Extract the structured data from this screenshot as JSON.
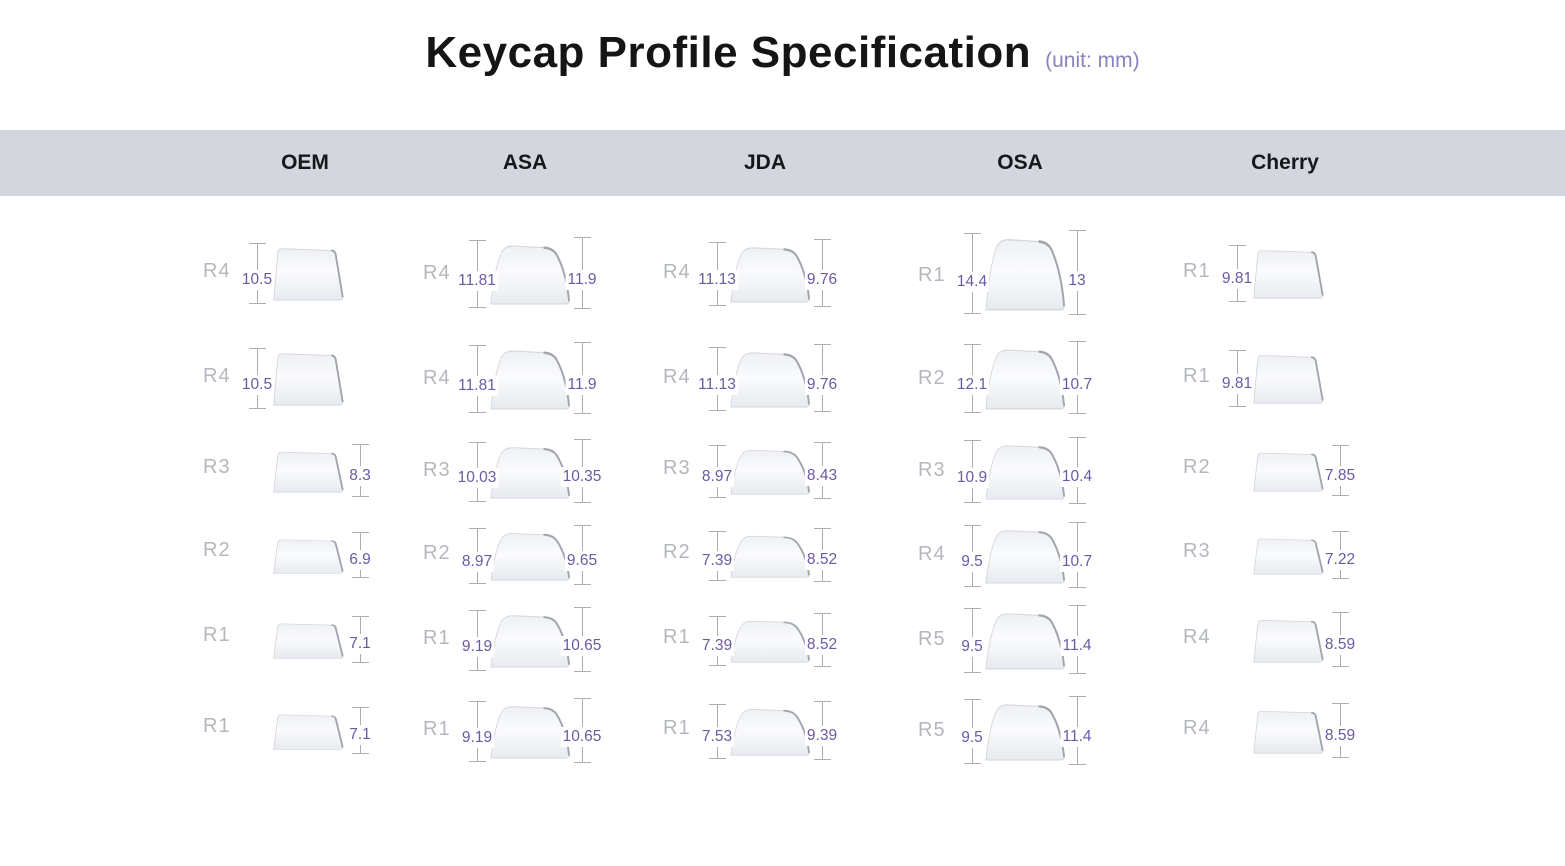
{
  "title": "Keycap Profile Specification",
  "unit_note": "(unit: mm)",
  "colors": {
    "header_band": "#d3d6dd",
    "row_label": "#b4b7bd",
    "dimension_value": "#6c59a5",
    "dimension_line": "#a9adb4",
    "unit_note": "#8784bd",
    "title": "#151515"
  },
  "columns": [
    {
      "name": "OEM",
      "shape": "flat",
      "rows": [
        {
          "label": "R4",
          "left": "10.5",
          "right": null
        },
        {
          "label": "R4",
          "left": "10.5",
          "right": null
        },
        {
          "label": "R3",
          "left": null,
          "right": "8.3"
        },
        {
          "label": "R2",
          "left": null,
          "right": "6.9"
        },
        {
          "label": "R1",
          "left": null,
          "right": "7.1"
        },
        {
          "label": "R1",
          "left": null,
          "right": "7.1"
        }
      ]
    },
    {
      "name": "ASA",
      "shape": "round",
      "rows": [
        {
          "label": "R4",
          "left": "11.81",
          "right": "11.9"
        },
        {
          "label": "R4",
          "left": "11.81",
          "right": "11.9"
        },
        {
          "label": "R3",
          "left": "10.03",
          "right": "10.35"
        },
        {
          "label": "R2",
          "left": "8.97",
          "right": "9.65"
        },
        {
          "label": "R1",
          "left": "9.19",
          "right": "10.65"
        },
        {
          "label": "R1",
          "left": "9.19",
          "right": "10.65"
        }
      ]
    },
    {
      "name": "JDA",
      "shape": "round",
      "rows": [
        {
          "label": "R4",
          "left": "11.13",
          "right": "9.76"
        },
        {
          "label": "R4",
          "left": "11.13",
          "right": "9.76"
        },
        {
          "label": "R3",
          "left": "8.97",
          "right": "8.43"
        },
        {
          "label": "R2",
          "left": "7.39",
          "right": "8.52"
        },
        {
          "label": "R1",
          "left": "7.39",
          "right": "8.52"
        },
        {
          "label": "R1",
          "left": "7.53",
          "right": "9.39"
        }
      ]
    },
    {
      "name": "OSA",
      "shape": "round",
      "rows": [
        {
          "label": "R1",
          "left": "14.4",
          "right": "13"
        },
        {
          "label": "R2",
          "left": "12.1",
          "right": "10.7"
        },
        {
          "label": "R3",
          "left": "10.9",
          "right": "10.4"
        },
        {
          "label": "R4",
          "left": "9.5",
          "right": "10.7"
        },
        {
          "label": "R5",
          "left": "9.5",
          "right": "11.4"
        },
        {
          "label": "R5",
          "left": "9.5",
          "right": "11.4"
        }
      ]
    },
    {
      "name": "Cherry",
      "shape": "flat",
      "rows": [
        {
          "label": "R1",
          "left": "9.81",
          "right": null
        },
        {
          "label": "R1",
          "left": "9.81",
          "right": null
        },
        {
          "label": "R2",
          "left": null,
          "right": "7.85"
        },
        {
          "label": "R3",
          "left": null,
          "right": "7.22"
        },
        {
          "label": "R4",
          "left": null,
          "right": "8.59"
        },
        {
          "label": "R4",
          "left": null,
          "right": "8.59"
        }
      ]
    }
  ]
}
